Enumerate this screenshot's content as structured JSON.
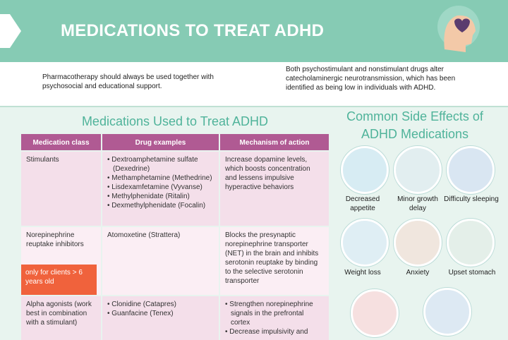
{
  "header": {
    "title": "MEDICATIONS TO TREAT ADHD"
  },
  "intro": {
    "left": "Pharmacotherapy should always be used together with psychosocial and educational support.",
    "right": "Both psychostimulant and nonstimulant drugs alter catecholaminergic neurotransmission, which has been identified as being low in individuals with ADHD."
  },
  "table": {
    "title": "Medications Used to Treat ADHD",
    "columns": [
      "Medication class",
      "Drug examples",
      "Mechanism of action"
    ],
    "rows": [
      {
        "class": "Stimulants",
        "drugs": [
          "Dextroamphetamine sulfate (Dexedrine)",
          "Methamphetamine (Methedrine)",
          "Lisdexamfetamine (Vyvanse)",
          "Methylphenidate (Ritalin)",
          "Dexmethylphenidate (Focalin)"
        ],
        "mechanism": [
          "Increase dopamine levels, which boosts concentration and lessens impulsive hyperactive behaviors"
        ]
      },
      {
        "class": "Norepinephrine reuptake inhibitors",
        "note": "only for clients > 6 years old",
        "drugs": [
          "Atomoxetine (Strattera)"
        ],
        "mechanism": [
          "Blocks the presynaptic norepinephrine transporter (NET) in the brain and inhibits serotonin reuptake by binding to the selective serotonin transporter"
        ]
      },
      {
        "class": "Alpha agonists (work best in combination with a stimulant)",
        "drugs": [
          "Clonidine (Catapres)",
          "Guanfacine (Tenex)"
        ],
        "mechanism": [
          "Strengthen norepinephrine signals in the prefrontal cortex",
          "Decrease impulsivity and"
        ]
      }
    ]
  },
  "side_effects": {
    "title": "Common Side Effects of ADHD Medications",
    "items": [
      "Decreased appetite",
      "Minor growth delay",
      "Difficulty sleeping",
      "Weight loss",
      "Anxiety",
      "Upset stomach"
    ]
  }
}
